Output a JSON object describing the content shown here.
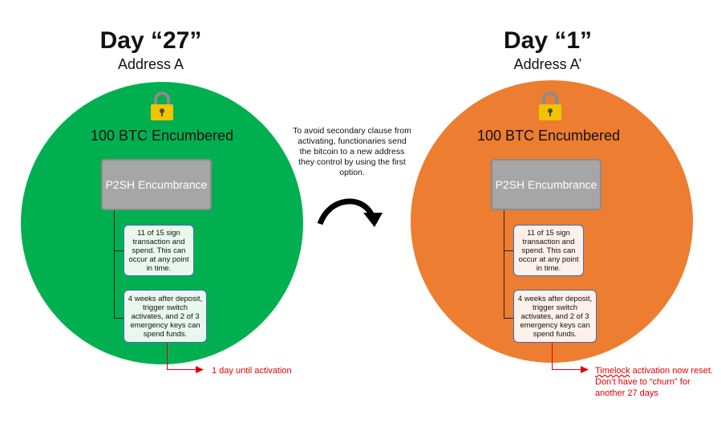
{
  "left": {
    "title": "Day “27”",
    "subtitle": "Address A",
    "encumbered": "100 BTC Encumbered",
    "p2sh": "P2SH Encumbrance",
    "condition1": "11 of 15 sign transaction and spend. This can occur at  any point in time.",
    "condition2": "4 weeks after deposit, trigger switch activates, and 2 of 3 emergency keys can spend funds.",
    "note": "1 day until activation",
    "color": "#00b050"
  },
  "middle": {
    "text": "To avoid secondary clause from activating, functionaries send the bitcoin to a new address they control by using the first option.",
    "arrow_icon": "curved-arrow-icon"
  },
  "right": {
    "title": "Day “1”",
    "subtitle": "Address A’",
    "encumbered": "100 BTC Encumbered",
    "p2sh": "P2SH Encumbrance",
    "condition1": "11 of 15 sign transaction and spend. This can occur at  any point in time.",
    "condition2": "4 weeks after deposit, trigger switch activates, and 2 of 3 emergency keys can spend funds.",
    "note_word": "Timelock",
    "note_rest": " activation now reset. Don’t have to “churn” for another 27 days",
    "color": "#ed7d31"
  },
  "colors": {
    "lock_body": "#f2c400",
    "lock_shackle": "#8c8c8c",
    "note_red": "#e00000",
    "box_border": "#3f6fb0"
  }
}
